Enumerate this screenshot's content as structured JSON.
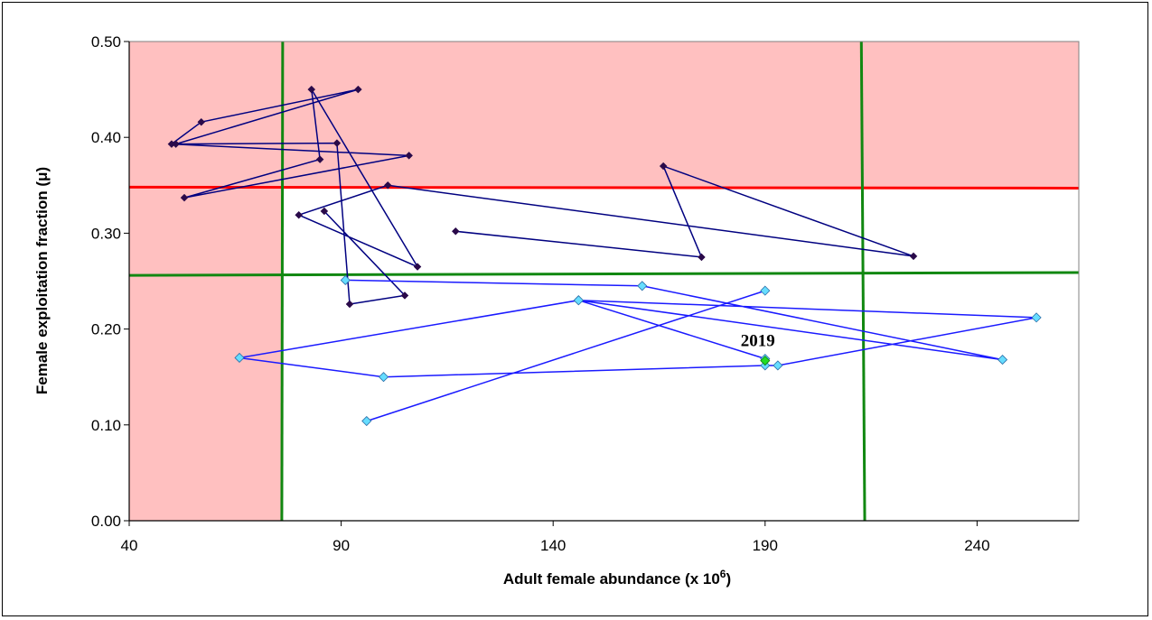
{
  "chart_data": {
    "type": "scatter",
    "xlabel": "Adult female abundance (x 10",
    "xlabel_sup": "6",
    "xlabel_end": ")",
    "ylabel": "Female exploitation fraction (μ)",
    "xlim": [
      40,
      264
    ],
    "ylim": [
      0,
      0.5
    ],
    "x_ticks": [
      40,
      90,
      140,
      190,
      240
    ],
    "y_ticks": [
      "0.00",
      "0.10",
      "0.20",
      "0.30",
      "0.40",
      "0.50"
    ],
    "y_tick_values": [
      0,
      0.1,
      0.2,
      0.3,
      0.4,
      0.5
    ],
    "grid": false,
    "colors": {
      "danger_zone": "#ffc0c0",
      "dark_series": "#000080",
      "dark_marker": "#2a0a4a",
      "light_series": "#1a1aff",
      "light_marker": "#66ddff",
      "latest_marker": "#22dd22",
      "threshold_red": "#ff0000",
      "threshold_green": "#118811"
    },
    "shaded_regions": [
      {
        "x": [
          40,
          76
        ],
        "y": [
          0,
          0.5
        ]
      },
      {
        "x": [
          76,
          264
        ],
        "y": [
          0.347,
          0.5
        ]
      }
    ],
    "reference_lines": [
      {
        "orientation": "horizontal",
        "color": "red",
        "y_start": 0.348,
        "y_end": 0.347
      },
      {
        "orientation": "horizontal",
        "color": "green",
        "y_start": 0.256,
        "y_end": 0.259
      },
      {
        "orientation": "vertical",
        "color": "green",
        "x_start": 76.2,
        "x_end": 76.0
      },
      {
        "orientation": "vertical",
        "color": "green",
        "x_start": 212.7,
        "x_end": 213.5
      }
    ],
    "series": [
      {
        "style": "dark",
        "points": [
          [
            117,
            0.302
          ],
          [
            175,
            0.275
          ],
          [
            166,
            0.37
          ],
          [
            225,
            0.276
          ],
          [
            101,
            0.35
          ],
          [
            80,
            0.319
          ],
          [
            108,
            0.265
          ],
          [
            83,
            0.45
          ],
          [
            85,
            0.377
          ],
          [
            53,
            0.337
          ],
          [
            106,
            0.381
          ],
          [
            50,
            0.393
          ],
          [
            57,
            0.416
          ],
          [
            94,
            0.45
          ],
          [
            51,
            0.393
          ],
          [
            89,
            0.394
          ],
          [
            92,
            0.226
          ],
          [
            105,
            0.235
          ],
          [
            86,
            0.323
          ]
        ]
      },
      {
        "style": "light",
        "points": [
          [
            91,
            0.251
          ],
          [
            161,
            0.245
          ],
          [
            246,
            0.168
          ],
          [
            146,
            0.23
          ],
          [
            66,
            0.17
          ],
          [
            100,
            0.15
          ],
          [
            190,
            0.162
          ],
          [
            193,
            0.162
          ],
          [
            254,
            0.212
          ],
          [
            146,
            0.23
          ],
          [
            190,
            0.169
          ]
        ]
      },
      {
        "style": "light",
        "points": [
          [
            96,
            0.104
          ],
          [
            190,
            0.24
          ]
        ]
      }
    ],
    "latest_point": {
      "label": "2019",
      "x": 190,
      "y": 0.167
    }
  }
}
